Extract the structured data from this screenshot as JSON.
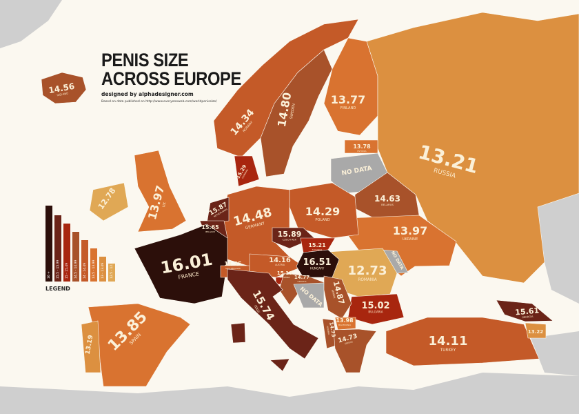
{
  "title": {
    "line1": "PENIS SIZE",
    "line2": "ACROSS EUROPE"
  },
  "byline": "designed by alphadesigner.com",
  "source": "Based on data published on http://www.everyoneweb.com/worldpenissize/",
  "legend": {
    "title": "LEGEND",
    "bins": [
      {
        "label": "16 +",
        "color": "#2c0f0a"
      },
      {
        "label": "15.5 - 15.99",
        "color": "#6b2418"
      },
      {
        "label": "15 - 15.49",
        "color": "#a8260f"
      },
      {
        "label": "14.5 - 14.99",
        "color": "#a8522a"
      },
      {
        "label": "14 - 14.49",
        "color": "#c45a28"
      },
      {
        "label": "13.5 - 13.99",
        "color": "#d97330"
      },
      {
        "label": "13 - 13.49",
        "color": "#dc9040"
      },
      {
        "label": "12.5 - 12.99",
        "color": "#e0a855"
      }
    ]
  },
  "colors": {
    "background": "#fbf8f0",
    "other_land": "#cfcfcf",
    "no_data": "#a9a9a9"
  },
  "no_data_label": "NO DATA",
  "countries": [
    {
      "id": "iceland",
      "name": "ICELAND",
      "value": "14.56",
      "bin": 3
    },
    {
      "id": "norway",
      "name": "NORWAY",
      "value": "14.34",
      "bin": 4
    },
    {
      "id": "sweden",
      "name": "SWEDEN",
      "value": "14.80",
      "bin": 3
    },
    {
      "id": "finland",
      "name": "FINLAND",
      "value": "13.77",
      "bin": 5
    },
    {
      "id": "russia",
      "name": "RUSSIA",
      "value": "13.21",
      "bin": 6
    },
    {
      "id": "estonia",
      "name": "ESTONIA",
      "value": "13.78",
      "bin": 5
    },
    {
      "id": "baltics",
      "name": "",
      "value": "NO DATA",
      "bin": -1
    },
    {
      "id": "belarus",
      "name": "BELARUS",
      "value": "14.63",
      "bin": 3
    },
    {
      "id": "ukraine",
      "name": "UKRAINE",
      "value": "13.97",
      "bin": 5
    },
    {
      "id": "moldova",
      "name": "",
      "value": "NO DATA",
      "bin": -1
    },
    {
      "id": "romania",
      "name": "ROMANIA",
      "value": "12.73",
      "bin": 7
    },
    {
      "id": "bulgaria",
      "name": "BULGARIA",
      "value": "15.02",
      "bin": 2
    },
    {
      "id": "poland",
      "name": "POLAND",
      "value": "14.29",
      "bin": 4
    },
    {
      "id": "germany",
      "name": "GERMANY",
      "value": "14.48",
      "bin": 4
    },
    {
      "id": "denmark",
      "name": "DENMARK",
      "value": "15.29",
      "bin": 2
    },
    {
      "id": "netherlands",
      "name": "NETHERLANDS",
      "value": "15.87",
      "bin": 1
    },
    {
      "id": "belgium",
      "name": "BELGIUM",
      "value": "15.65",
      "bin": 1
    },
    {
      "id": "france",
      "name": "FRANCE",
      "value": "16.01",
      "bin": 0
    },
    {
      "id": "switzerland",
      "name": "SWITZERLAND",
      "value": "14.35",
      "bin": 4
    },
    {
      "id": "austria",
      "name": "AUSTRIA",
      "value": "14.16",
      "bin": 4
    },
    {
      "id": "czech",
      "name": "CZECH REP.",
      "value": "15.89",
      "bin": 1
    },
    {
      "id": "slovakia",
      "name": "SLOVAKIA",
      "value": "15.21",
      "bin": 2
    },
    {
      "id": "hungary",
      "name": "HUNGARY",
      "value": "16.51",
      "bin": 0
    },
    {
      "id": "slovenia",
      "name": "SLOVENIA",
      "value": "15.13",
      "bin": 2
    },
    {
      "id": "croatia",
      "name": "CROATIA",
      "value": "14.77",
      "bin": 3
    },
    {
      "id": "bosnia",
      "name": "",
      "value": "NO DATA",
      "bin": -1
    },
    {
      "id": "serbia",
      "name": "SERBIA",
      "value": "14.87",
      "bin": 3
    },
    {
      "id": "macedonia",
      "name": "MACEDONIA",
      "value": "13.98",
      "bin": 5
    },
    {
      "id": "albania",
      "name": "ALBANIA",
      "value": "14.73",
      "bin": 3
    },
    {
      "id": "greece",
      "name": "GREECE",
      "value": "14.73",
      "bin": 3
    },
    {
      "id": "turkey",
      "name": "TURKEY",
      "value": "14.11",
      "bin": 4
    },
    {
      "id": "georgia",
      "name": "GEORGIA",
      "value": "15.61",
      "bin": 1
    },
    {
      "id": "armenia",
      "name": "",
      "value": "13.22",
      "bin": 6
    },
    {
      "id": "italy",
      "name": "ITALY",
      "value": "15.74",
      "bin": 1
    },
    {
      "id": "spain",
      "name": "SPAIN",
      "value": "13.85",
      "bin": 5
    },
    {
      "id": "portugal",
      "name": "",
      "value": "13.19",
      "bin": 6
    },
    {
      "id": "uk",
      "name": "UK",
      "value": "13.97",
      "bin": 5
    },
    {
      "id": "ireland",
      "name": "",
      "value": "12.78",
      "bin": 7
    }
  ]
}
